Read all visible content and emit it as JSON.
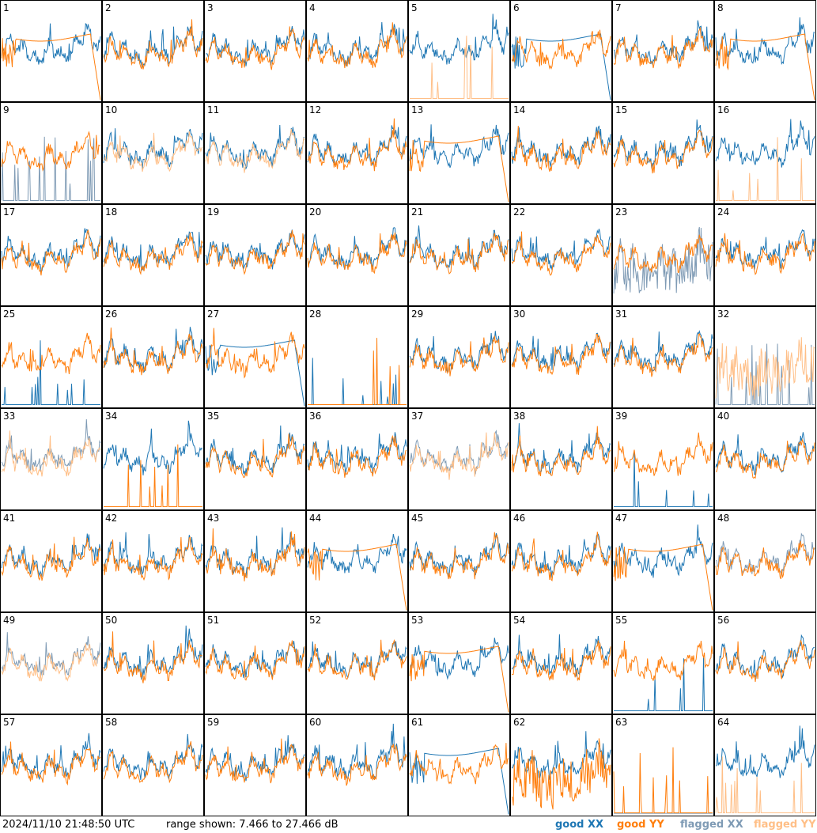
{
  "timestamp": "2024/11/10 21:48:50 UTC",
  "range_text": "range shown: 7.466 to 27.466 dB",
  "legend": {
    "good_xx": "good XX",
    "good_yy": "good YY",
    "flagged_xx": "flagged XX",
    "flagged_yy": "flagged YY"
  },
  "colors": {
    "good_xx": "#1f77b4",
    "good_yy": "#ff7f0e",
    "flagged_xx": "#7f9bb5",
    "flagged_yy": "#ffbf87"
  },
  "chart_data": {
    "type": "line",
    "layout": "8x8 grid of small multiples, no axes",
    "ylim": [
      7.466,
      27.466
    ],
    "yunit": "dB",
    "series": [
      "XX",
      "YY"
    ],
    "panels": [
      {
        "id": "1",
        "xx": "good",
        "yy": "good",
        "xx_shape": "normal",
        "yy_shape": "rolloff"
      },
      {
        "id": "2",
        "xx": "good",
        "yy": "good",
        "xx_shape": "normal",
        "yy_shape": "normal"
      },
      {
        "id": "3",
        "xx": "good",
        "yy": "good",
        "xx_shape": "normal",
        "yy_shape": "normal"
      },
      {
        "id": "4",
        "xx": "good",
        "yy": "good",
        "xx_shape": "normal",
        "yy_shape": "normal"
      },
      {
        "id": "5",
        "xx": "good",
        "yy": "flagged",
        "xx_shape": "normal",
        "yy_shape": "spikes"
      },
      {
        "id": "6",
        "xx": "good",
        "yy": "good",
        "xx_shape": "rolloff",
        "yy_shape": "normal"
      },
      {
        "id": "7",
        "xx": "good",
        "yy": "good",
        "xx_shape": "normal",
        "yy_shape": "normal"
      },
      {
        "id": "8",
        "xx": "good",
        "yy": "good",
        "xx_shape": "normal",
        "yy_shape": "rolloff"
      },
      {
        "id": "9",
        "xx": "flagged",
        "yy": "good",
        "xx_shape": "spikes",
        "yy_shape": "normal"
      },
      {
        "id": "10",
        "xx": "good",
        "yy": "flagged",
        "xx_shape": "normal",
        "yy_shape": "normal"
      },
      {
        "id": "11",
        "xx": "good",
        "yy": "flagged",
        "xx_shape": "normal",
        "yy_shape": "normal"
      },
      {
        "id": "12",
        "xx": "good",
        "yy": "good",
        "xx_shape": "normal",
        "yy_shape": "normal"
      },
      {
        "id": "13",
        "xx": "good",
        "yy": "good",
        "xx_shape": "normal",
        "yy_shape": "rolloff"
      },
      {
        "id": "14",
        "xx": "good",
        "yy": "good",
        "xx_shape": "normal",
        "yy_shape": "normal"
      },
      {
        "id": "15",
        "xx": "good",
        "yy": "good",
        "xx_shape": "normal",
        "yy_shape": "normal"
      },
      {
        "id": "16",
        "xx": "good",
        "yy": "flagged",
        "xx_shape": "normal",
        "yy_shape": "spikes"
      },
      {
        "id": "17",
        "xx": "good",
        "yy": "good",
        "xx_shape": "normal",
        "yy_shape": "normal"
      },
      {
        "id": "18",
        "xx": "good",
        "yy": "good",
        "xx_shape": "normal",
        "yy_shape": "normal"
      },
      {
        "id": "19",
        "xx": "good",
        "yy": "good",
        "xx_shape": "normal",
        "yy_shape": "normal"
      },
      {
        "id": "20",
        "xx": "good",
        "yy": "good",
        "xx_shape": "normal",
        "yy_shape": "normal"
      },
      {
        "id": "21",
        "xx": "good",
        "yy": "good",
        "xx_shape": "normal",
        "yy_shape": "normal"
      },
      {
        "id": "22",
        "xx": "good",
        "yy": "good",
        "xx_shape": "normal",
        "yy_shape": "normal"
      },
      {
        "id": "23",
        "xx": "flagged",
        "yy": "good",
        "xx_shape": "noisy",
        "yy_shape": "normal"
      },
      {
        "id": "24",
        "xx": "good",
        "yy": "good",
        "xx_shape": "normal",
        "yy_shape": "normal"
      },
      {
        "id": "25",
        "xx": "good",
        "yy": "good",
        "xx_shape": "spikes",
        "yy_shape": "normal"
      },
      {
        "id": "26",
        "xx": "good",
        "yy": "good",
        "xx_shape": "normal",
        "yy_shape": "normal"
      },
      {
        "id": "27",
        "xx": "good",
        "yy": "good",
        "xx_shape": "rolloff",
        "yy_shape": "normal"
      },
      {
        "id": "28",
        "xx": "good",
        "yy": "good",
        "xx_shape": "spikes",
        "yy_shape": "spikes"
      },
      {
        "id": "29",
        "xx": "good",
        "yy": "good",
        "xx_shape": "normal",
        "yy_shape": "normal"
      },
      {
        "id": "30",
        "xx": "good",
        "yy": "good",
        "xx_shape": "normal",
        "yy_shape": "normal"
      },
      {
        "id": "31",
        "xx": "good",
        "yy": "good",
        "xx_shape": "normal",
        "yy_shape": "normal"
      },
      {
        "id": "32",
        "xx": "flagged",
        "yy": "flagged",
        "xx_shape": "spikes",
        "yy_shape": "noisy"
      },
      {
        "id": "33",
        "xx": "flagged",
        "yy": "flagged",
        "xx_shape": "normal",
        "yy_shape": "normal"
      },
      {
        "id": "34",
        "xx": "good",
        "yy": "good",
        "xx_shape": "normal",
        "yy_shape": "spikes"
      },
      {
        "id": "35",
        "xx": "good",
        "yy": "good",
        "xx_shape": "normal",
        "yy_shape": "normal"
      },
      {
        "id": "36",
        "xx": "good",
        "yy": "good",
        "xx_shape": "normal",
        "yy_shape": "normal"
      },
      {
        "id": "37",
        "xx": "flagged",
        "yy": "flagged",
        "xx_shape": "normal",
        "yy_shape": "normal"
      },
      {
        "id": "38",
        "xx": "good",
        "yy": "good",
        "xx_shape": "normal",
        "yy_shape": "normal"
      },
      {
        "id": "39",
        "xx": "good",
        "yy": "good",
        "xx_shape": "spikes",
        "yy_shape": "normal"
      },
      {
        "id": "40",
        "xx": "good",
        "yy": "good",
        "xx_shape": "normal",
        "yy_shape": "normal"
      },
      {
        "id": "41",
        "xx": "good",
        "yy": "good",
        "xx_shape": "normal",
        "yy_shape": "normal"
      },
      {
        "id": "42",
        "xx": "good",
        "yy": "good",
        "xx_shape": "normal",
        "yy_shape": "normal"
      },
      {
        "id": "43",
        "xx": "good",
        "yy": "good",
        "xx_shape": "normal",
        "yy_shape": "normal"
      },
      {
        "id": "44",
        "xx": "good",
        "yy": "good",
        "xx_shape": "normal",
        "yy_shape": "rolloff"
      },
      {
        "id": "45",
        "xx": "good",
        "yy": "good",
        "xx_shape": "normal",
        "yy_shape": "normal"
      },
      {
        "id": "46",
        "xx": "good",
        "yy": "good",
        "xx_shape": "normal",
        "yy_shape": "normal"
      },
      {
        "id": "47",
        "xx": "good",
        "yy": "good",
        "xx_shape": "normal",
        "yy_shape": "rolloff"
      },
      {
        "id": "48",
        "xx": "flagged",
        "yy": "good",
        "xx_shape": "normal",
        "yy_shape": "normal"
      },
      {
        "id": "49",
        "xx": "flagged",
        "yy": "flagged",
        "xx_shape": "normal",
        "yy_shape": "normal"
      },
      {
        "id": "50",
        "xx": "good",
        "yy": "good",
        "xx_shape": "normal",
        "yy_shape": "normal"
      },
      {
        "id": "51",
        "xx": "good",
        "yy": "good",
        "xx_shape": "normal",
        "yy_shape": "normal"
      },
      {
        "id": "52",
        "xx": "good",
        "yy": "good",
        "xx_shape": "normal",
        "yy_shape": "normal"
      },
      {
        "id": "53",
        "xx": "good",
        "yy": "good",
        "xx_shape": "normal",
        "yy_shape": "rolloff"
      },
      {
        "id": "54",
        "xx": "good",
        "yy": "good",
        "xx_shape": "normal",
        "yy_shape": "normal"
      },
      {
        "id": "55",
        "xx": "good",
        "yy": "good",
        "xx_shape": "spikes",
        "yy_shape": "normal"
      },
      {
        "id": "56",
        "xx": "good",
        "yy": "good",
        "xx_shape": "normal",
        "yy_shape": "normal"
      },
      {
        "id": "57",
        "xx": "good",
        "yy": "good",
        "xx_shape": "normal",
        "yy_shape": "normal"
      },
      {
        "id": "58",
        "xx": "good",
        "yy": "good",
        "xx_shape": "normal",
        "yy_shape": "normal"
      },
      {
        "id": "59",
        "xx": "good",
        "yy": "good",
        "xx_shape": "normal",
        "yy_shape": "normal"
      },
      {
        "id": "60",
        "xx": "good",
        "yy": "good",
        "xx_shape": "normal",
        "yy_shape": "normal"
      },
      {
        "id": "61",
        "xx": "good",
        "yy": "good",
        "xx_shape": "rolloff",
        "yy_shape": "normal"
      },
      {
        "id": "62",
        "xx": "good",
        "yy": "good",
        "xx_shape": "normal",
        "yy_shape": "noisy"
      },
      {
        "id": "63",
        "xx": "flagged",
        "yy": "good",
        "xx_shape": "flat",
        "yy_shape": "spikes"
      },
      {
        "id": "64",
        "xx": "good",
        "yy": "flagged",
        "xx_shape": "normal",
        "yy_shape": "spikes"
      }
    ]
  }
}
